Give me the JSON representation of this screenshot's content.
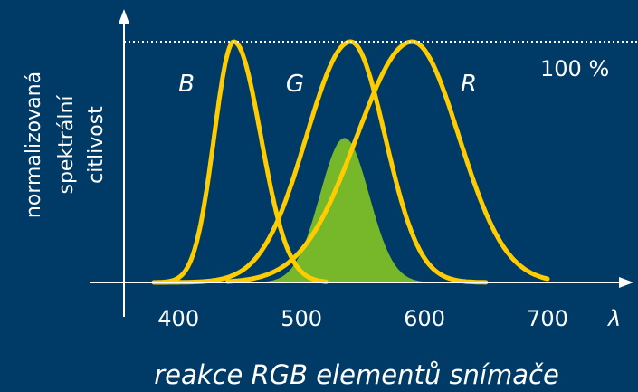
{
  "chart_data": {
    "type": "line",
    "title": "reakce RGB elementů snímače",
    "ylabel_lines": [
      "normalizovaná",
      "spektrální",
      "citlivost"
    ],
    "xlabel": "λ",
    "x_ticks": [
      400,
      500,
      600,
      700
    ],
    "xlim": [
      380,
      705
    ],
    "ylim": [
      0,
      100
    ],
    "reference_line": {
      "value": 100,
      "label": "100 %"
    },
    "series": [
      {
        "name": "B",
        "color": "#ffcc00",
        "peak": 445,
        "sigma_left": 16,
        "sigma_right": 22,
        "range": [
          380,
          520
        ]
      },
      {
        "name": "G",
        "color": "#ffcc00",
        "peak": 540,
        "sigma_left": 36,
        "sigma_right": 28,
        "range": [
          380,
          650
        ]
      },
      {
        "name": "R",
        "color": "#ffcc00",
        "peak": 590,
        "sigma_left": 45,
        "sigma_right": 38,
        "range": [
          440,
          700
        ]
      }
    ],
    "filled_curve": {
      "color": "#76b82a",
      "peak": 535,
      "amplitude": 60,
      "sigma_left": 20,
      "sigma_right": 20,
      "range": [
        460,
        610
      ]
    }
  }
}
